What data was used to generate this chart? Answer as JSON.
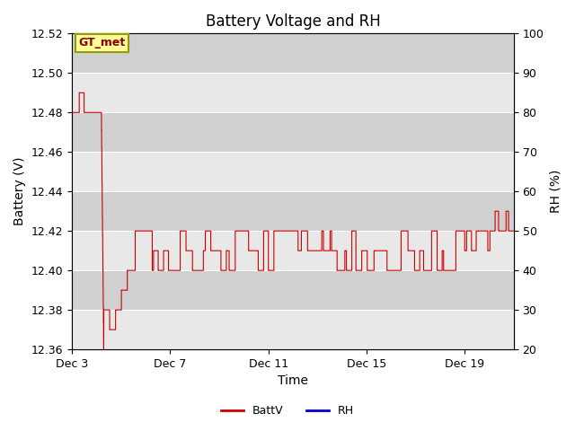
{
  "title": "Battery Voltage and RH",
  "xlabel": "Time",
  "ylabel_left": "Battery (V)",
  "ylabel_right": "RH (%)",
  "ylim_left": [
    12.36,
    12.52
  ],
  "ylim_right": [
    20,
    100
  ],
  "yticks_left": [
    12.36,
    12.38,
    12.4,
    12.42,
    12.44,
    12.46,
    12.48,
    12.5,
    12.52
  ],
  "yticks_right": [
    20,
    30,
    40,
    50,
    60,
    70,
    80,
    90,
    100
  ],
  "xtick_days": [
    3,
    7,
    11,
    15,
    19
  ],
  "xtick_labels": [
    "Dec 3",
    "Dec 7",
    "Dec 11",
    "Dec 15",
    "Dec 19"
  ],
  "total_days": 18,
  "annotation_text": "GT_met",
  "plot_bg_color": "#e8e8e8",
  "band_color_light": "#e8e8e8",
  "band_color_dark": "#d0d0d0",
  "line_color_batt": "#cc0000",
  "line_color_rh": "#0000cc",
  "legend_labels": [
    "BattV",
    "RH"
  ],
  "title_fontsize": 12,
  "label_fontsize": 10,
  "tick_fontsize": 9
}
